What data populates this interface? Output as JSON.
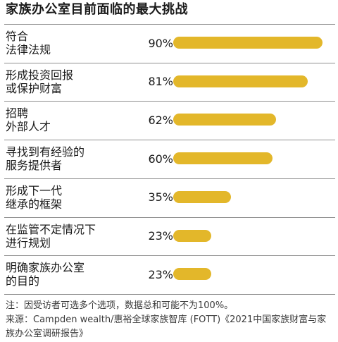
{
  "title": "家族办公室目前面临的最大挑战",
  "colors": {
    "bar": "#e3b72a",
    "rule": "#8f8f8f"
  },
  "chart_data": {
    "type": "bar",
    "orientation": "horizontal",
    "title": "家族办公室目前面临的最大挑战",
    "categories": [
      "符合\n法律法规",
      "形成投资回报\n或保护财富",
      "招聘\n外部人才",
      "寻找到有经验的\n服务提供者",
      "形成下一代\n继承的框架",
      "在监管不定情况下\n进行规划",
      "明确家族办公室\n的目的"
    ],
    "values": [
      90,
      81,
      62,
      60,
      35,
      23,
      23
    ],
    "value_labels": [
      "90%",
      "81%",
      "62%",
      "60%",
      "35%",
      "23%",
      "23%"
    ],
    "xlim": [
      0,
      90
    ],
    "grid": false
  },
  "footnote": {
    "note": "注：因受访者可选多个选项，数据总和可能不为100%。",
    "source": "来源：Campden wealth/惠裕全球家族智库 (FOTT)《2021中国家族财富与家族办公室调研报告》"
  }
}
